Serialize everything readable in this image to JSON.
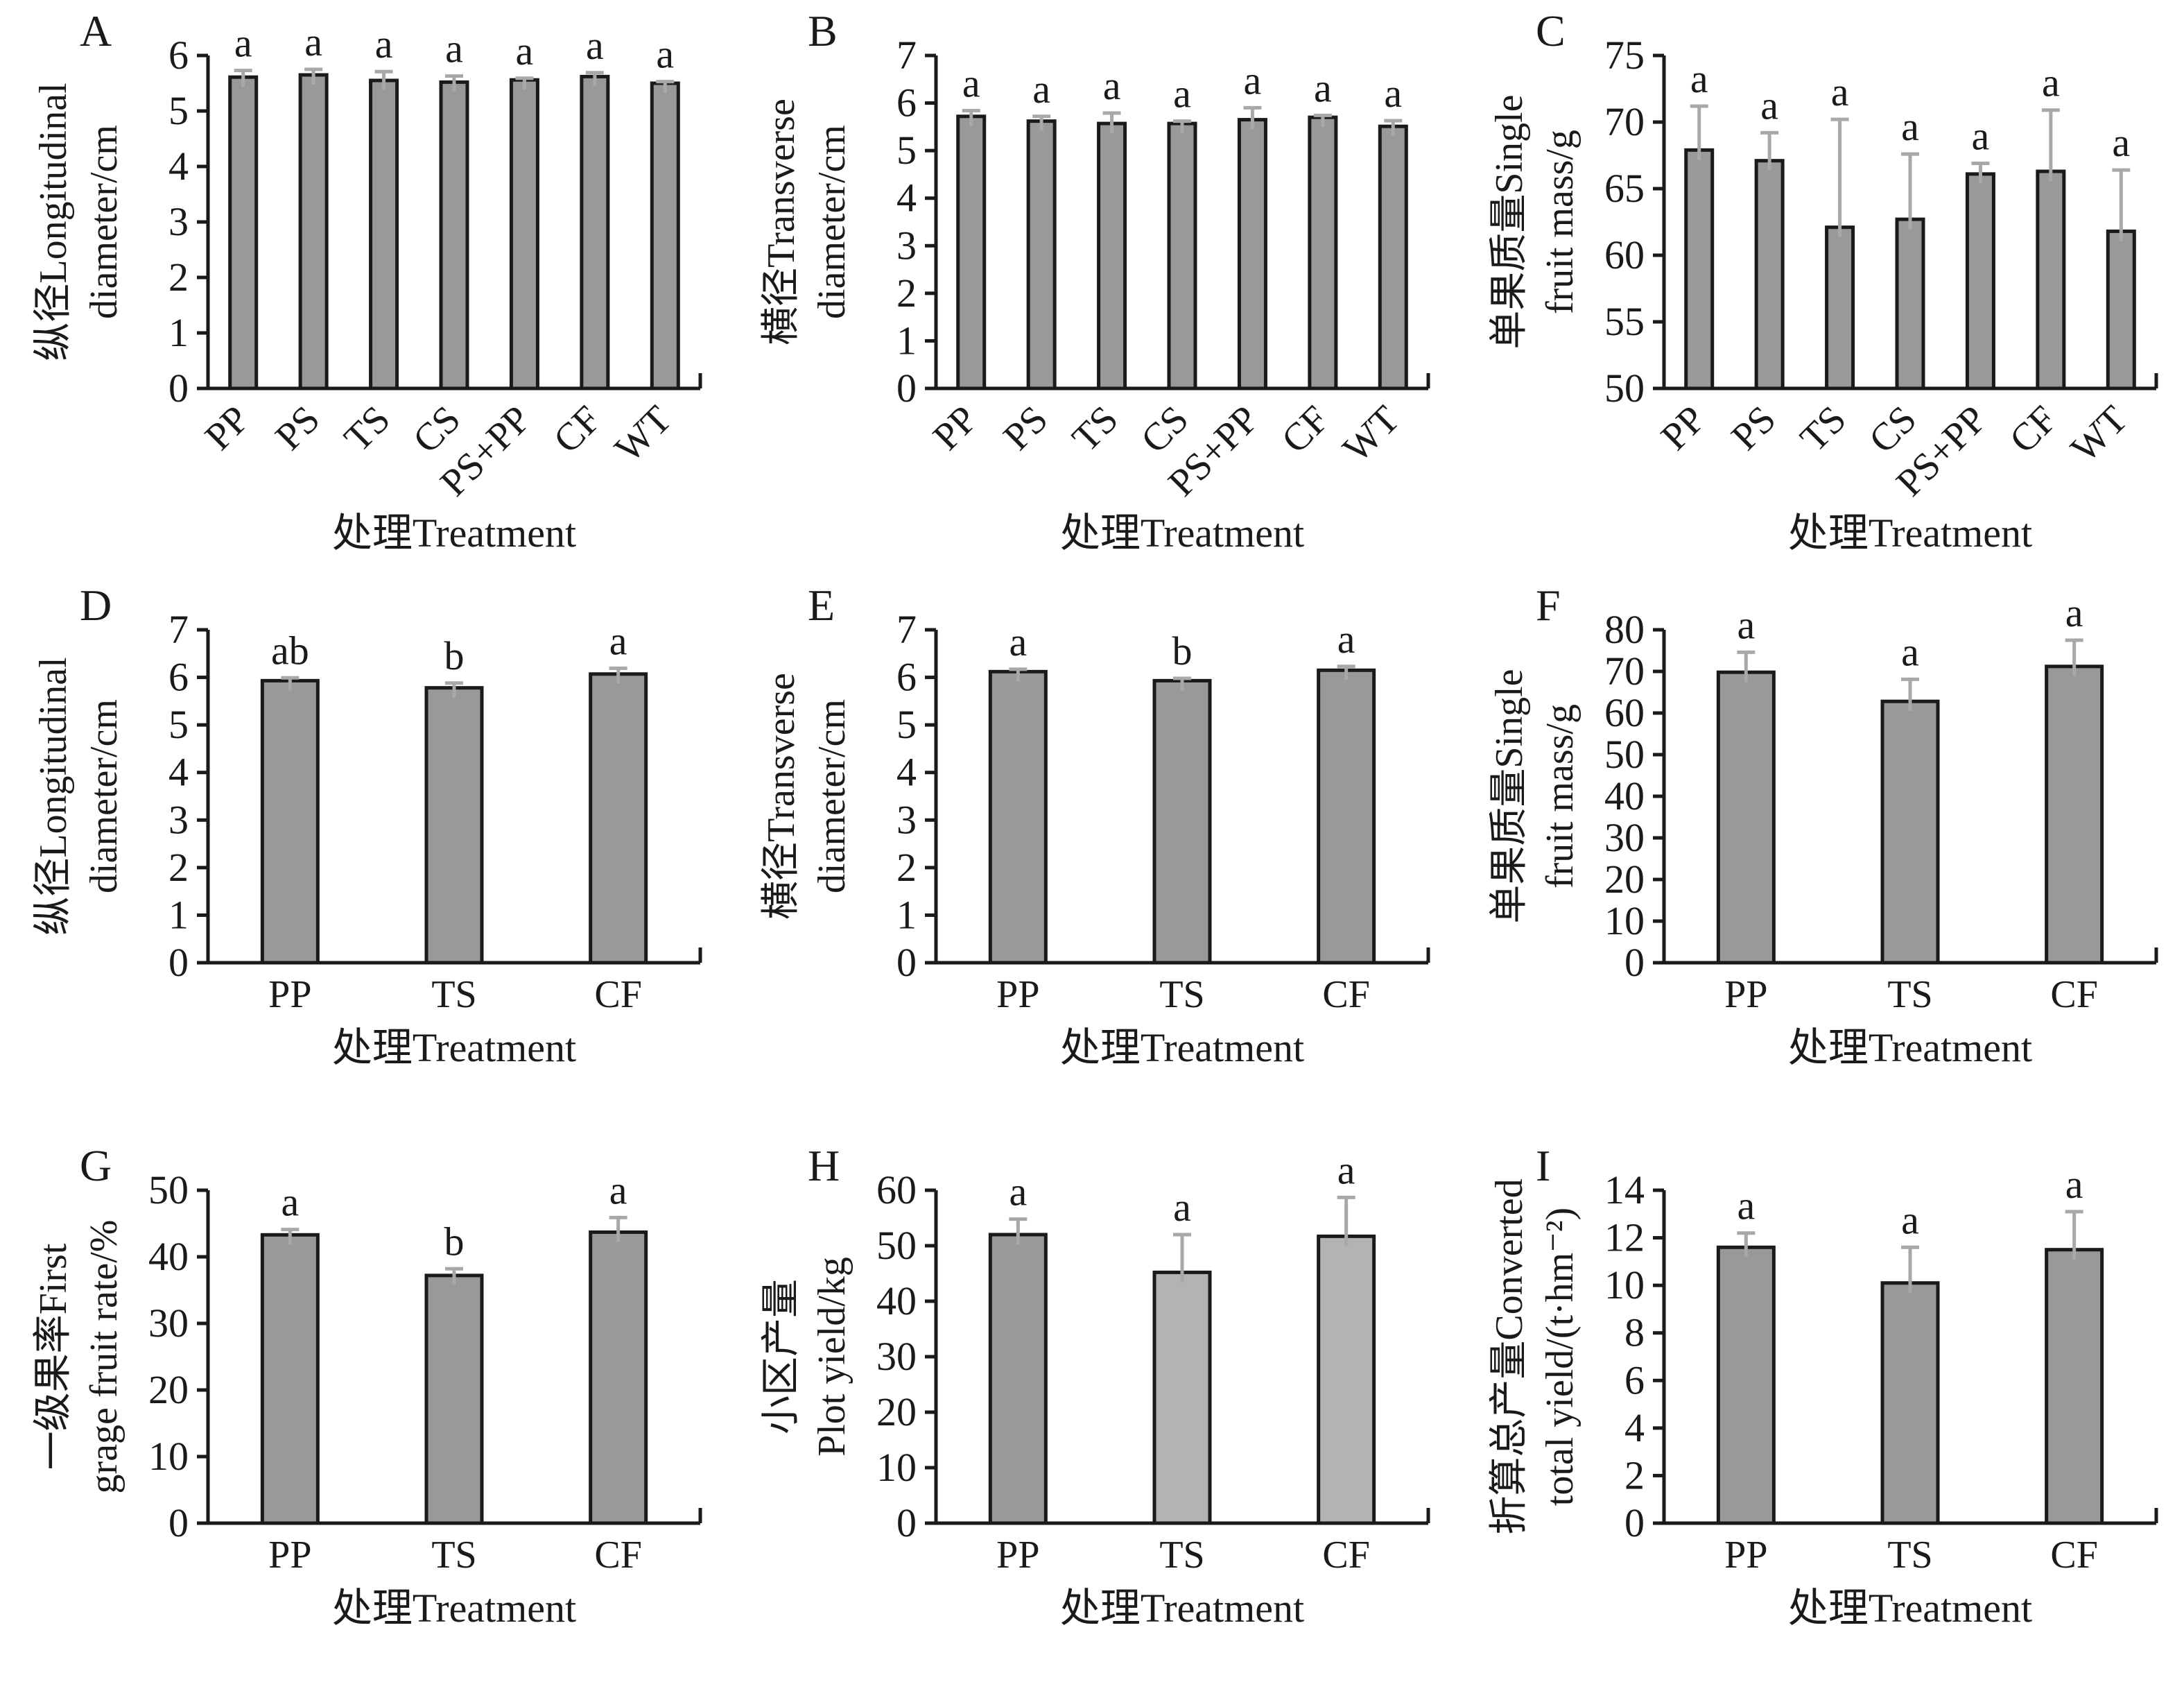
{
  "figure": {
    "background": "#ffffff",
    "colors": {
      "bar_fill": "#9a9898",
      "bar_fill_light": "#b4b2b2",
      "bar_stroke": "#1a1a1a",
      "error_bar": "#a9a7a7",
      "axis": "#1a1a1a",
      "text": "#1a1a1a"
    }
  },
  "chart_data": [
    {
      "panel": "A",
      "type": "bar",
      "title": "",
      "ylabel_line1": "纵径Longitudinal",
      "ylabel_line2": "diameter/cm",
      "xlabel": "处理Treatment",
      "categories": [
        "PP",
        "PS",
        "TS",
        "CS",
        "PS+PP",
        "CF",
        "WT"
      ],
      "values": [
        5.61,
        5.65,
        5.55,
        5.52,
        5.56,
        5.62,
        5.5
      ],
      "errors": [
        0.12,
        0.1,
        0.16,
        0.11,
        0.03,
        0.07,
        0.03
      ],
      "sig_letters": [
        "a",
        "a",
        "a",
        "a",
        "a",
        "a",
        "a"
      ],
      "ylim": [
        0,
        6
      ],
      "ytick_step": 1,
      "rotated_xticks": true,
      "grid": false,
      "light_bars": []
    },
    {
      "panel": "B",
      "type": "bar",
      "title": "",
      "ylabel_line1": "横径Transverse",
      "ylabel_line2": "diameter/cm",
      "xlabel": "处理Treatment",
      "categories": [
        "PP",
        "PS",
        "TS",
        "CS",
        "PS+PP",
        "CF",
        "WT"
      ],
      "values": [
        5.72,
        5.62,
        5.57,
        5.57,
        5.65,
        5.7,
        5.51
      ],
      "errors": [
        0.12,
        0.1,
        0.22,
        0.05,
        0.25,
        0.04,
        0.12
      ],
      "sig_letters": [
        "a",
        "a",
        "a",
        "a",
        "a",
        "a",
        "a"
      ],
      "ylim": [
        0,
        7
      ],
      "ytick_step": 1,
      "rotated_xticks": true,
      "grid": false,
      "light_bars": []
    },
    {
      "panel": "C",
      "type": "bar",
      "title": "",
      "ylabel_line1": "单果质量Single",
      "ylabel_line2": "fruit mass/g",
      "xlabel": "处理Treatment",
      "categories": [
        "PP",
        "PS",
        "TS",
        "CS",
        "PS+PP",
        "CF",
        "WT"
      ],
      "values": [
        67.9,
        67.1,
        62.1,
        62.7,
        66.1,
        66.3,
        61.8
      ],
      "errors": [
        3.3,
        2.1,
        8.1,
        4.9,
        0.8,
        4.6,
        4.6
      ],
      "sig_letters": [
        "a",
        "a",
        "a",
        "a",
        "a",
        "a",
        "a"
      ],
      "ylim": [
        50,
        75
      ],
      "ytick_step": 5,
      "rotated_xticks": true,
      "grid": false,
      "light_bars": []
    },
    {
      "panel": "D",
      "type": "bar",
      "title": "",
      "ylabel_line1": "纵径Longitudinal",
      "ylabel_line2": "diameter/cm",
      "xlabel": "处理Treatment",
      "categories": [
        "PP",
        "TS",
        "CF"
      ],
      "values": [
        5.93,
        5.78,
        6.07
      ],
      "errors": [
        0.06,
        0.1,
        0.12
      ],
      "sig_letters": [
        "ab",
        "b",
        "a"
      ],
      "ylim": [
        0,
        7
      ],
      "ytick_step": 1,
      "rotated_xticks": false,
      "grid": false,
      "light_bars": []
    },
    {
      "panel": "E",
      "type": "bar",
      "title": "",
      "ylabel_line1": "横径Transverse",
      "ylabel_line2": "diameter/cm",
      "xlabel": "处理Treatment",
      "categories": [
        "PP",
        "TS",
        "CF"
      ],
      "values": [
        6.12,
        5.93,
        6.15
      ],
      "errors": [
        0.05,
        0.05,
        0.08
      ],
      "sig_letters": [
        "a",
        "b",
        "a"
      ],
      "ylim": [
        0,
        7
      ],
      "ytick_step": 1,
      "rotated_xticks": false,
      "grid": false,
      "light_bars": []
    },
    {
      "panel": "F",
      "type": "bar",
      "title": "",
      "ylabel_line1": "单果质量Single",
      "ylabel_line2": "fruit mass/g",
      "xlabel": "处理Treatment",
      "categories": [
        "PP",
        "TS",
        "CF"
      ],
      "values": [
        69.8,
        62.8,
        71.2
      ],
      "errors": [
        4.8,
        5.3,
        6.3
      ],
      "sig_letters": [
        "a",
        "a",
        "a"
      ],
      "ylim": [
        0,
        80
      ],
      "ytick_step": 10,
      "rotated_xticks": false,
      "grid": false,
      "light_bars": []
    },
    {
      "panel": "G",
      "type": "bar",
      "title": "",
      "ylabel_line1": "一级果率First",
      "ylabel_line2": "grage fruit rate/%",
      "xlabel": "处理Treatment",
      "categories": [
        "PP",
        "TS",
        "CF"
      ],
      "values": [
        43.3,
        37.2,
        43.7
      ],
      "errors": [
        0.8,
        1.0,
        2.2
      ],
      "sig_letters": [
        "a",
        "b",
        "a"
      ],
      "ylim": [
        0,
        50
      ],
      "ytick_step": 10,
      "rotated_xticks": false,
      "grid": false,
      "light_bars": []
    },
    {
      "panel": "H",
      "type": "bar",
      "title": "",
      "ylabel_line1": "小区产量",
      "ylabel_line2": "Plot yield/kg",
      "xlabel": "处理Treatment",
      "categories": [
        "PP",
        "TS",
        "CF"
      ],
      "values": [
        52.0,
        45.2,
        51.7
      ],
      "errors": [
        2.8,
        6.8,
        7.0
      ],
      "sig_letters": [
        "a",
        "a",
        "a"
      ],
      "ylim": [
        0,
        60
      ],
      "ytick_step": 10,
      "rotated_xticks": false,
      "grid": false,
      "light_bars": [
        1,
        2
      ]
    },
    {
      "panel": "I",
      "type": "bar",
      "title": "",
      "ylabel_line1": "折算总产量Converted",
      "ylabel_line2": "total yield/(t·hm⁻²)",
      "xlabel": "处理Treatment",
      "categories": [
        "PP",
        "TS",
        "CF"
      ],
      "values": [
        11.6,
        10.1,
        11.5
      ],
      "errors": [
        0.6,
        1.5,
        1.6
      ],
      "sig_letters": [
        "a",
        "a",
        "a"
      ],
      "ylim": [
        0,
        14
      ],
      "ytick_step": 2,
      "rotated_xticks": false,
      "grid": false,
      "light_bars": []
    }
  ]
}
